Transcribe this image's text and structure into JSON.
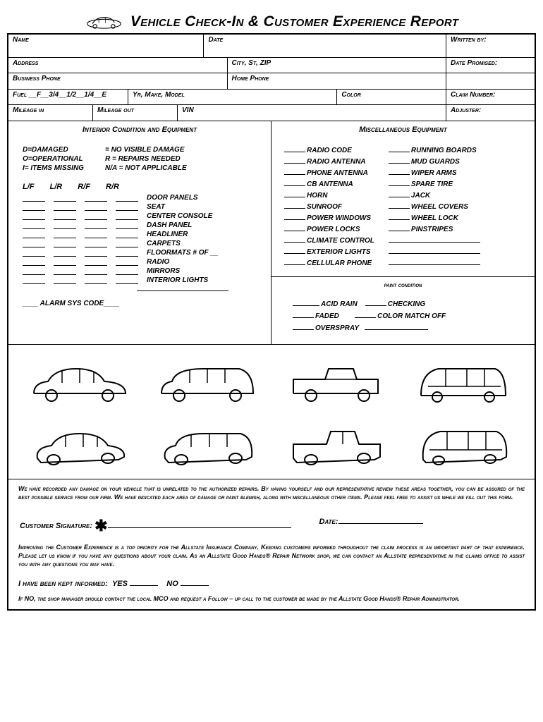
{
  "title": "Vehicle Check-In & Customer Experience Report",
  "fields": {
    "name": "Name",
    "date": "Date",
    "written_by": "Written by:",
    "address": "Address",
    "city_st_zip": "City, St, ZIP",
    "date_promised": "Date Promised:",
    "business_phone": "Business Phone",
    "home_phone": "Home Phone",
    "fuel": "Fuel __F__3/4__1/2__1/4__E",
    "yr_make_model": "Yr, Make, Model",
    "color": "Color",
    "claim_number": "Claim Number:",
    "mileage_in": "Mileage in",
    "mileage_out": "Mileage out",
    "vin": "VIN",
    "adjuster": "Adjuster:"
  },
  "sections": {
    "interior_title": "Interior Condition and Equipment",
    "misc_title": "Miscellaneous Equipment",
    "paint_title": "paint condition"
  },
  "legend": {
    "col1": [
      "D=DAMAGED",
      "O=OPERATIONAL",
      "I= ITEMS MISSING"
    ],
    "col2": [
      "= NO VISIBLE DAMAGE",
      "R = REPAIRS NEEDED",
      "N/A = NOT APPLICABLE"
    ]
  },
  "lfr_headers": [
    "L/F",
    "L/R",
    "R/F",
    "R/R"
  ],
  "interior_items": [
    "DOOR PANELS",
    "SEAT",
    "CENTER CONSOLE",
    "DASH PANEL",
    "HEADLINER",
    "CARPETS",
    "FLOORMATS # OF __",
    "RADIO",
    "MIRRORS",
    "INTERIOR LIGHTS"
  ],
  "alarm": "____ ALARM SYS CODE____",
  "misc_col1": [
    "RADIO CODE",
    "RADIO ANTENNA",
    "PHONE ANTENNA",
    "CB ANTENNA",
    "HORN",
    "SUNROOF",
    "POWER WINDOWS",
    "POWER LOCKS",
    "CLIMATE CONTROL",
    "EXTERIOR LIGHTS",
    "CELLULAR PHONE"
  ],
  "misc_col2": [
    "RUNNING BOARDS",
    "MUD GUARDS",
    "WIPER ARMS",
    "SPARE TIRE",
    "JACK",
    "WHEEL COVERS",
    "WHEEL LOCK",
    "PINSTRIPES"
  ],
  "paint_items": {
    "line1a": "ACID RAIN",
    "line1b": "CHECKING",
    "line2a": "FADED",
    "line2b": "COLOR MATCH OFF",
    "line3a": "OVERSPRAY"
  },
  "disclaimer": "We have recorded any damage on your vehicle that is unrelated to the authorized repairs. By having yourself and our representative review these areas together, you can be assured of the best possible service from our firm. We have indicated each area of damage or paint blemish, along with miscellaneous other items. Please feel free to assist us while we fill out this form.",
  "signature": {
    "customer": "Customer Signature:",
    "date": "Date:"
  },
  "improve": "Improving the Customer Experience is a top priority for the Allstate Insurance Company. Keeping customers informed throughout the claim process is an important part of that experience. Please let us know if you have any questions about your claim. As an Allstate Good Hands® Repair Network shop, we can contact an Allstate representative in the claims office to assist you with any questions you may have.",
  "informed": {
    "label": "I have been kept informed:",
    "yes": "YES",
    "no": "NO"
  },
  "ifno": "If NO, the shop manager should contact the local MCO and request a Follow – up call to the customer be made by the Allstate Good Hands® Repair Administrator.",
  "colors": {
    "border": "#000000",
    "text": "#000000",
    "background": "#ffffff"
  }
}
